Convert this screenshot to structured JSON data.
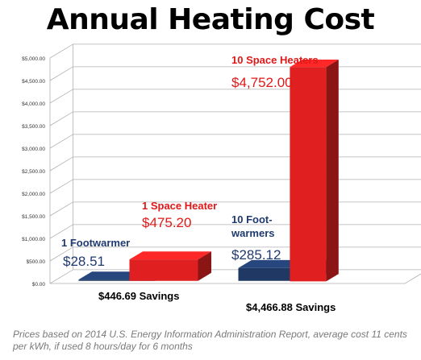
{
  "title": "Annual Heating Cost",
  "footnote": "Prices based on 2014 U.S. Energy Information Administration Report, average cost 11 cents per kWh, if used 8 hours/day for 6 months",
  "colors": {
    "footwarmer": "#1f3864",
    "heater": "#e02020",
    "label_blue": "#1f3a6e",
    "label_red": "#e01818",
    "grid": "#b0b0b0",
    "axis_text": "#333333"
  },
  "chart_data": {
    "type": "bar",
    "title": "Annual Heating Cost",
    "ylim": [
      0,
      5000
    ],
    "yticks": [
      "$0.00",
      "$500.00",
      "$1,000.00",
      "$1,500.00",
      "$2,000.00",
      "$2,500.00",
      "$3,000.00",
      "$3,500.00",
      "$4,000.00",
      "$4,500.00",
      "$5,000.00"
    ],
    "grid": true,
    "groups": [
      {
        "bars": [
          {
            "label": "1 Footwarmer",
            "value": 28.51,
            "display": "$28.51",
            "color_key": "footwarmer"
          },
          {
            "label": "1 Space Heater",
            "value": 475.2,
            "display": "$475.20",
            "color_key": "heater"
          }
        ],
        "savings": "$446.69 Savings"
      },
      {
        "bars": [
          {
            "label": "10 Foot-\nwarmers",
            "value": 285.12,
            "display": "$285.12",
            "color_key": "footwarmer"
          },
          {
            "label": "10 Space Heaters",
            "value": 4752.0,
            "display": "$4,752.00",
            "color_key": "heater"
          }
        ],
        "savings": "$4,466.88 Savings"
      }
    ]
  }
}
